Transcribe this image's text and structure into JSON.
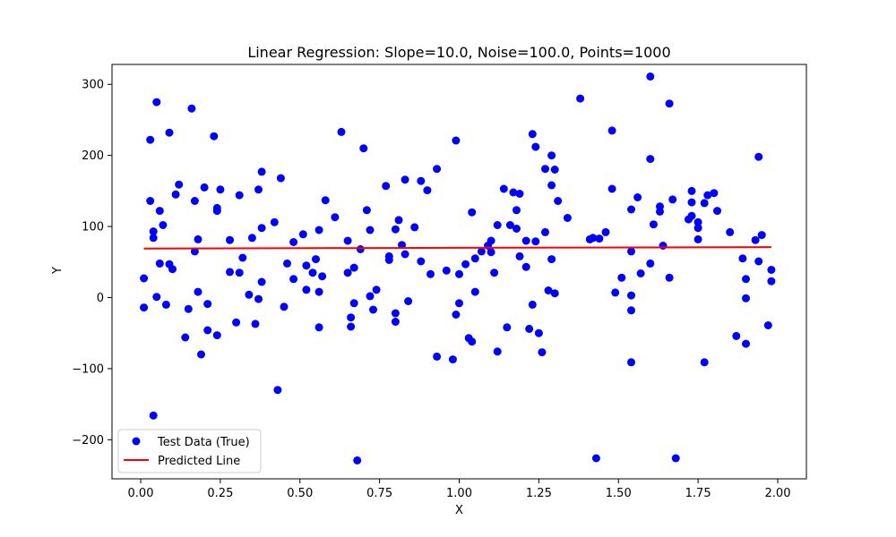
{
  "chart_data": {
    "type": "scatter",
    "title": "Linear Regression: Slope=10.0, Noise=100.0, Points=1000",
    "xlabel": "X",
    "ylabel": "Y",
    "xlim": [
      -0.09,
      2.09
    ],
    "ylim": [
      -255,
      328
    ],
    "xticks": [
      0.0,
      0.25,
      0.5,
      0.75,
      1.0,
      1.25,
      1.5,
      1.75,
      2.0
    ],
    "xtick_labels": [
      "0.00",
      "0.25",
      "0.50",
      "0.75",
      "1.00",
      "1.25",
      "1.50",
      "1.75",
      "2.00"
    ],
    "yticks": [
      -200,
      -100,
      0,
      100,
      200,
      300
    ],
    "ytick_labels": [
      "−200",
      "−100",
      "0",
      "100",
      "200",
      "300"
    ],
    "grid": false,
    "legend_position": "lower-left",
    "series": [
      {
        "name": "Test Data (True)",
        "kind": "scatter",
        "color": "#0000ff",
        "points": [
          [
            0.01,
            27
          ],
          [
            0.01,
            -14
          ],
          [
            0.03,
            136
          ],
          [
            0.03,
            222
          ],
          [
            0.04,
            84
          ],
          [
            0.04,
            93
          ],
          [
            0.04,
            -166
          ],
          [
            0.05,
            275
          ],
          [
            0.05,
            1
          ],
          [
            0.06,
            122
          ],
          [
            0.06,
            48
          ],
          [
            0.07,
            102
          ],
          [
            0.08,
            -10
          ],
          [
            0.09,
            232
          ],
          [
            0.09,
            47
          ],
          [
            0.1,
            40
          ],
          [
            0.11,
            145
          ],
          [
            0.12,
            159
          ],
          [
            0.14,
            -56
          ],
          [
            0.15,
            -16
          ],
          [
            0.16,
            266
          ],
          [
            0.17,
            65
          ],
          [
            0.17,
            136
          ],
          [
            0.18,
            82
          ],
          [
            0.18,
            8
          ],
          [
            0.19,
            -80
          ],
          [
            0.2,
            155
          ],
          [
            0.21,
            -46
          ],
          [
            0.21,
            -9
          ],
          [
            0.23,
            227
          ],
          [
            0.24,
            122
          ],
          [
            0.24,
            126
          ],
          [
            0.24,
            -53
          ],
          [
            0.25,
            152
          ],
          [
            0.28,
            36
          ],
          [
            0.28,
            81
          ],
          [
            0.3,
            -35
          ],
          [
            0.31,
            35
          ],
          [
            0.31,
            144
          ],
          [
            0.32,
            56
          ],
          [
            0.34,
            4
          ],
          [
            0.35,
            84
          ],
          [
            0.36,
            -37
          ],
          [
            0.37,
            152
          ],
          [
            0.37,
            -2
          ],
          [
            0.38,
            98
          ],
          [
            0.38,
            177
          ],
          [
            0.38,
            22
          ],
          [
            0.42,
            106
          ],
          [
            0.43,
            -130
          ],
          [
            0.44,
            168
          ],
          [
            0.45,
            -13
          ],
          [
            0.46,
            48
          ],
          [
            0.48,
            26
          ],
          [
            0.48,
            78
          ],
          [
            0.51,
            89
          ],
          [
            0.52,
            45
          ],
          [
            0.52,
            11
          ],
          [
            0.54,
            35
          ],
          [
            0.55,
            54
          ],
          [
            0.56,
            -42
          ],
          [
            0.56,
            95
          ],
          [
            0.56,
            8
          ],
          [
            0.57,
            30
          ],
          [
            0.58,
            137
          ],
          [
            0.61,
            113
          ],
          [
            0.63,
            233
          ],
          [
            0.65,
            80
          ],
          [
            0.65,
            35
          ],
          [
            0.66,
            -28
          ],
          [
            0.66,
            -41
          ],
          [
            0.67,
            -8
          ],
          [
            0.67,
            42
          ],
          [
            0.68,
            -229
          ],
          [
            0.69,
            68
          ],
          [
            0.7,
            210
          ],
          [
            0.71,
            123
          ],
          [
            0.72,
            95
          ],
          [
            0.72,
            2
          ],
          [
            0.73,
            -17
          ],
          [
            0.74,
            11
          ],
          [
            0.77,
            157
          ],
          [
            0.78,
            58
          ],
          [
            0.78,
            53
          ],
          [
            0.8,
            -22
          ],
          [
            0.8,
            96
          ],
          [
            0.8,
            -34
          ],
          [
            0.81,
            109
          ],
          [
            0.82,
            74
          ],
          [
            0.83,
            166
          ],
          [
            0.83,
            61
          ],
          [
            0.84,
            -5
          ],
          [
            0.86,
            99
          ],
          [
            0.88,
            164
          ],
          [
            0.88,
            51
          ],
          [
            0.9,
            151
          ],
          [
            0.91,
            33
          ],
          [
            0.93,
            181
          ],
          [
            0.93,
            -83
          ],
          [
            0.96,
            38
          ],
          [
            0.98,
            -87
          ],
          [
            0.99,
            -24
          ],
          [
            0.99,
            221
          ],
          [
            1.0,
            33
          ],
          [
            1.0,
            -8
          ],
          [
            1.02,
            47
          ],
          [
            1.03,
            -57
          ],
          [
            1.04,
            120
          ],
          [
            1.04,
            -62
          ],
          [
            1.05,
            8
          ],
          [
            1.05,
            55
          ],
          [
            1.07,
            65
          ],
          [
            1.09,
            73
          ],
          [
            1.1,
            80
          ],
          [
            1.1,
            64
          ],
          [
            1.11,
            35
          ],
          [
            1.12,
            -76
          ],
          [
            1.12,
            102
          ],
          [
            1.14,
            153
          ],
          [
            1.15,
            -42
          ],
          [
            1.16,
            102
          ],
          [
            1.17,
            148
          ],
          [
            1.18,
            97
          ],
          [
            1.18,
            123
          ],
          [
            1.19,
            146
          ],
          [
            1.19,
            58
          ],
          [
            1.21,
            80
          ],
          [
            1.21,
            43
          ],
          [
            1.22,
            -44
          ],
          [
            1.23,
            230
          ],
          [
            1.23,
            -10
          ],
          [
            1.24,
            79
          ],
          [
            1.24,
            212
          ],
          [
            1.25,
            -50
          ],
          [
            1.26,
            -77
          ],
          [
            1.27,
            181
          ],
          [
            1.27,
            92
          ],
          [
            1.28,
            10
          ],
          [
            1.29,
            158
          ],
          [
            1.29,
            200
          ],
          [
            1.29,
            54
          ],
          [
            1.3,
            6
          ],
          [
            1.3,
            180
          ],
          [
            1.31,
            136
          ],
          [
            1.34,
            112
          ],
          [
            1.38,
            280
          ],
          [
            1.41,
            82
          ],
          [
            1.42,
            84
          ],
          [
            1.43,
            -226
          ],
          [
            1.44,
            83
          ],
          [
            1.46,
            92
          ],
          [
            1.48,
            235
          ],
          [
            1.48,
            153
          ],
          [
            1.49,
            7
          ],
          [
            1.51,
            28
          ],
          [
            1.54,
            65
          ],
          [
            1.54,
            -91
          ],
          [
            1.54,
            -18
          ],
          [
            1.54,
            3
          ],
          [
            1.54,
            124
          ],
          [
            1.56,
            141
          ],
          [
            1.57,
            34
          ],
          [
            1.6,
            311
          ],
          [
            1.6,
            195
          ],
          [
            1.6,
            48
          ],
          [
            1.61,
            103
          ],
          [
            1.63,
            128
          ],
          [
            1.63,
            121
          ],
          [
            1.64,
            73
          ],
          [
            1.66,
            28
          ],
          [
            1.66,
            273
          ],
          [
            1.67,
            138
          ],
          [
            1.68,
            -226
          ],
          [
            1.72,
            110
          ],
          [
            1.73,
            115
          ],
          [
            1.73,
            150
          ],
          [
            1.73,
            134
          ],
          [
            1.75,
            106
          ],
          [
            1.75,
            98
          ],
          [
            1.75,
            82
          ],
          [
            1.77,
            133
          ],
          [
            1.77,
            -91
          ],
          [
            1.78,
            144
          ],
          [
            1.8,
            147
          ],
          [
            1.81,
            122
          ],
          [
            1.85,
            92
          ],
          [
            1.87,
            -54
          ],
          [
            1.89,
            55
          ],
          [
            1.9,
            26
          ],
          [
            1.9,
            -1
          ],
          [
            1.9,
            -65
          ],
          [
            1.93,
            81
          ],
          [
            1.94,
            198
          ],
          [
            1.94,
            51
          ],
          [
            1.95,
            88
          ],
          [
            1.97,
            -39
          ],
          [
            1.98,
            39
          ],
          [
            1.98,
            23
          ]
        ]
      },
      {
        "name": "Predicted Line",
        "kind": "line",
        "color": "#ff0000",
        "points": [
          [
            0.01,
            69
          ],
          [
            1.98,
            71
          ]
        ]
      }
    ]
  }
}
